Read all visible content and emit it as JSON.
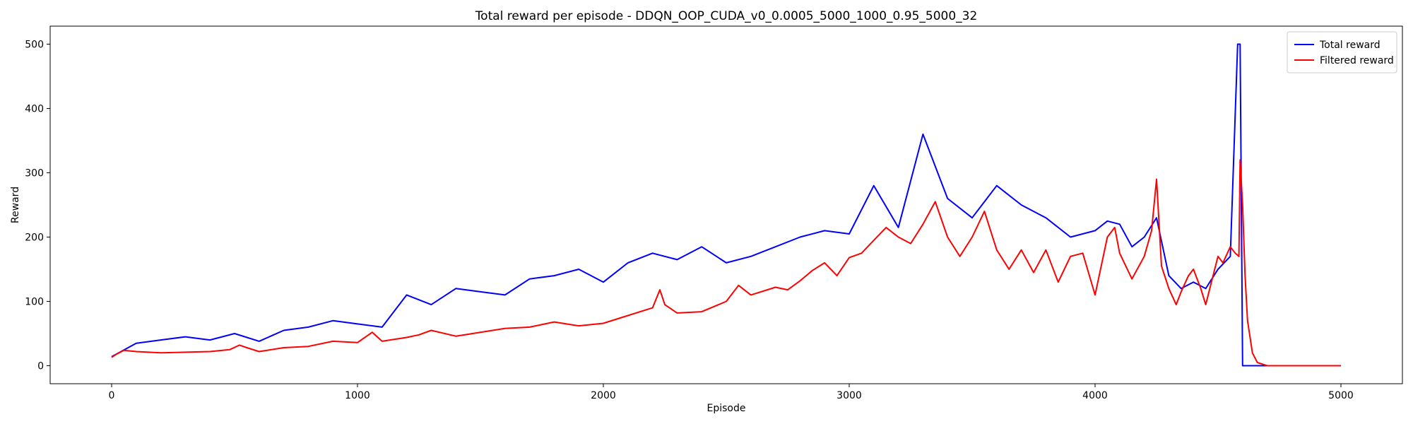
{
  "chart_data": {
    "type": "line",
    "title": "Total reward per episode - DDQN_OOP_CUDA_v0_0.0005_5000_1000_0.95_5000_32",
    "xlabel": "Episode",
    "ylabel": "Reward",
    "xlim": [
      -250,
      5250
    ],
    "ylim": [
      -28,
      528
    ],
    "xticks": [
      0,
      1000,
      2000,
      3000,
      4000,
      5000
    ],
    "yticks": [
      0,
      100,
      200,
      300,
      400,
      500
    ],
    "grid": false,
    "legend_position": "top-right",
    "series": [
      {
        "name": "Total reward",
        "color": "#0000ff",
        "x": [
          0,
          100,
          200,
          300,
          400,
          500,
          600,
          700,
          800,
          900,
          1000,
          1100,
          1200,
          1300,
          1400,
          1500,
          1600,
          1700,
          1800,
          1900,
          2000,
          2100,
          2200,
          2300,
          2400,
          2500,
          2600,
          2700,
          2800,
          2900,
          3000,
          3100,
          3200,
          3300,
          3400,
          3500,
          3600,
          3700,
          3800,
          3900,
          4000,
          4050,
          4100,
          4150,
          4200,
          4250,
          4300,
          4350,
          4400,
          4450,
          4500,
          4550,
          4580,
          4590,
          4600,
          4700,
          4800,
          4900,
          5000
        ],
        "y": [
          14,
          35,
          40,
          45,
          40,
          50,
          38,
          55,
          60,
          70,
          65,
          60,
          110,
          95,
          120,
          115,
          110,
          135,
          140,
          150,
          130,
          160,
          175,
          165,
          185,
          160,
          170,
          185,
          200,
          210,
          205,
          280,
          215,
          360,
          260,
          230,
          280,
          250,
          230,
          200,
          210,
          225,
          220,
          185,
          200,
          230,
          140,
          120,
          130,
          120,
          150,
          170,
          500,
          500,
          0,
          0,
          0,
          0,
          0
        ]
      },
      {
        "name": "Filtered reward",
        "color": "#ff0000",
        "x": [
          0,
          20,
          50,
          100,
          200,
          300,
          400,
          480,
          520,
          550,
          600,
          700,
          800,
          900,
          1000,
          1060,
          1100,
          1200,
          1250,
          1300,
          1400,
          1500,
          1600,
          1700,
          1800,
          1900,
          2000,
          2100,
          2200,
          2230,
          2250,
          2300,
          2400,
          2500,
          2550,
          2600,
          2700,
          2750,
          2800,
          2850,
          2900,
          2950,
          3000,
          3050,
          3100,
          3150,
          3200,
          3250,
          3300,
          3350,
          3400,
          3450,
          3500,
          3550,
          3600,
          3650,
          3700,
          3750,
          3800,
          3850,
          3900,
          3950,
          4000,
          4050,
          4080,
          4100,
          4150,
          4200,
          4230,
          4250,
          4270,
          4300,
          4330,
          4350,
          4380,
          4400,
          4430,
          4450,
          4480,
          4500,
          4520,
          4550,
          4570,
          4585,
          4590,
          4600,
          4610,
          4620,
          4640,
          4660,
          4700,
          4800,
          4900,
          5000
        ],
        "y": [
          13,
          18,
          24,
          22,
          20,
          21,
          22,
          25,
          32,
          28,
          22,
          28,
          30,
          38,
          36,
          52,
          38,
          44,
          48,
          55,
          46,
          52,
          58,
          60,
          68,
          62,
          66,
          78,
          90,
          118,
          95,
          82,
          84,
          100,
          125,
          110,
          122,
          118,
          132,
          148,
          160,
          140,
          168,
          175,
          195,
          215,
          200,
          190,
          220,
          255,
          200,
          170,
          200,
          240,
          180,
          150,
          180,
          145,
          180,
          130,
          170,
          175,
          110,
          200,
          215,
          175,
          135,
          170,
          210,
          290,
          155,
          120,
          95,
          115,
          140,
          150,
          120,
          95,
          140,
          170,
          160,
          185,
          175,
          170,
          320,
          250,
          140,
          70,
          20,
          5,
          0,
          0,
          0,
          0
        ]
      }
    ]
  }
}
